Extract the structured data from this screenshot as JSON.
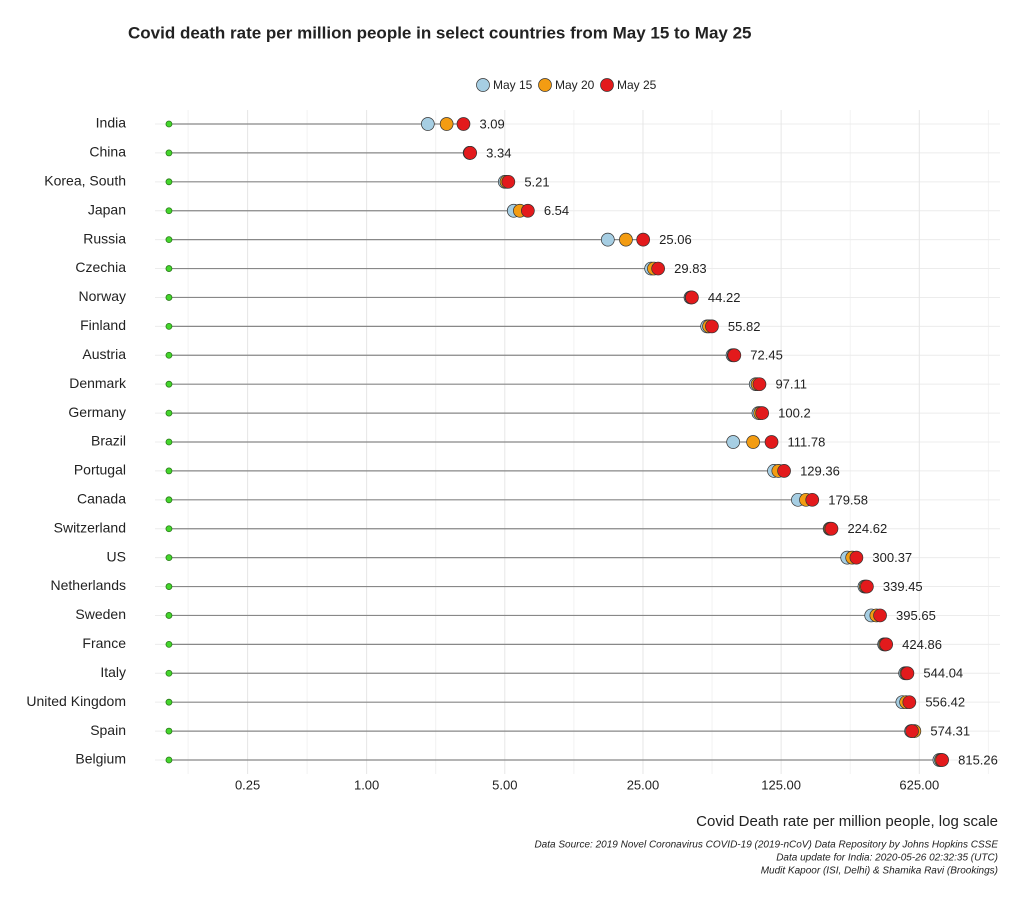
{
  "chart_data": {
    "type": "dot",
    "title": "Covid death rate per million people in select countries from May 15 to May 25",
    "x_label": "Covid Death rate per million people, log scale",
    "notes": [
      "Data Source: 2019 Novel Coronavirus COVID-19 (2019-nCoV) Data Repository by Johns Hopkins CSSE",
      "Data update for India: 2020-05-26 02:32:35 (UTC)",
      "Mudit Kapoor (ISI, Delhi) & Shamika Ravi (Brookings)"
    ],
    "categories": [
      "India",
      "China",
      "Korea, South",
      "Japan",
      "Russia",
      "Czechia",
      "Norway",
      "Finland",
      "Austria",
      "Denmark",
      "Germany",
      "Brazil",
      "Portugal",
      "Canada",
      "Switzerland",
      "US",
      "Netherlands",
      "Sweden",
      "France",
      "Italy",
      "United Kingdom",
      "Spain",
      "Belgium"
    ],
    "baseline": 0.1,
    "baseline_color": "#44d62c",
    "series": [
      {
        "name": "May 15",
        "color": "#a6cee3",
        "values": [
          2.04,
          3.32,
          5.0,
          5.55,
          16.6,
          27.5,
          43.5,
          52.8,
          71,
          93,
          96,
          71.5,
          115,
          152,
          220,
          270,
          330,
          357,
          415,
          530,
          513,
          568,
          790
        ]
      },
      {
        "name": "May 20",
        "color": "#f39c12",
        "values": [
          2.54,
          3.33,
          5.1,
          5.96,
          20.5,
          28.4,
          44.0,
          54,
          72,
          95,
          98,
          90.2,
          121,
          167,
          222,
          286,
          335,
          379,
          420,
          538,
          536,
          590,
          805
        ]
      },
      {
        "name": "May 25",
        "color": "#e31a1c",
        "values": [
          3.09,
          3.34,
          5.21,
          6.54,
          25.06,
          29.83,
          44.22,
          55.82,
          72.45,
          97.11,
          100.2,
          111.78,
          129.36,
          179.58,
          224.62,
          300.37,
          339.45,
          395.65,
          424.86,
          544.04,
          556.42,
          574.31,
          815.26
        ]
      }
    ],
    "label_series": 2,
    "log_x": true,
    "xlim": [
      0.085,
      1600
    ],
    "xticks": [
      0.25,
      {
        "value": 1,
        "label": "1.00"
      },
      {
        "value": 5,
        "label": "5.00"
      },
      {
        "value": 25,
        "label": "25.00"
      },
      {
        "value": 125,
        "label": "125.00"
      },
      {
        "value": 625,
        "label": "625.00"
      }
    ],
    "grid": true,
    "legend_position": "top"
  }
}
